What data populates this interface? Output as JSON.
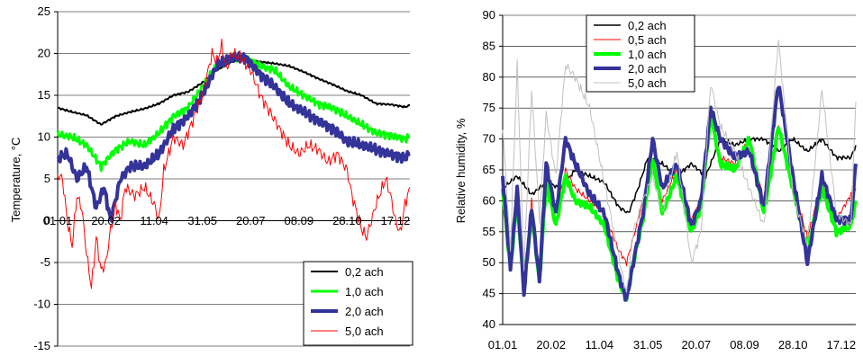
{
  "chart_data": [
    {
      "type": "line",
      "title": "",
      "xlabel": "",
      "ylabel": "Temperature, °C",
      "ylim": [
        -15,
        25
      ],
      "yticks": [
        "-15",
        "-10",
        "-5",
        "0",
        "5",
        "10",
        "15",
        "20",
        "25"
      ],
      "xticks": [
        "01.01",
        "20.02",
        "11.04",
        "31.05",
        "20.07",
        "08.09",
        "28.10",
        "17.12"
      ],
      "x_axis_at_y": 0,
      "grid": "horizontal",
      "legend_position": "bottom-right",
      "series": [
        {
          "name": "0,2 ach",
          "color": "#000000",
          "x": [
            0,
            15,
            30,
            45,
            60,
            75,
            90,
            105,
            120,
            135,
            150,
            165,
            180,
            195,
            210,
            225,
            240,
            255,
            270,
            285,
            300,
            315,
            330,
            345,
            360,
            365
          ],
          "values": [
            13.5,
            13.0,
            12.6,
            11.5,
            12.5,
            13.0,
            13.4,
            14.0,
            15.0,
            15.4,
            16.5,
            18.0,
            19.0,
            19.3,
            19.0,
            18.8,
            18.5,
            17.8,
            17.0,
            16.3,
            15.5,
            15.0,
            14.0,
            13.9,
            13.6,
            13.8
          ]
        },
        {
          "name": "1,0 ach",
          "color": "#00ff00",
          "x": [
            0,
            15,
            30,
            45,
            60,
            75,
            90,
            105,
            120,
            135,
            150,
            165,
            180,
            195,
            210,
            225,
            240,
            255,
            270,
            285,
            300,
            315,
            330,
            345,
            360,
            365
          ],
          "values": [
            10.3,
            10.0,
            9.0,
            6.5,
            8.5,
            9.5,
            9.0,
            10.5,
            12.5,
            13.5,
            16.0,
            18.5,
            19.5,
            19.5,
            18.5,
            18.0,
            16.0,
            15.0,
            14.0,
            13.5,
            12.5,
            11.5,
            10.5,
            10.2,
            9.8,
            10.0
          ]
        },
        {
          "name": "2,0 ach",
          "color": "#333399",
          "x": [
            0,
            10,
            20,
            30,
            40,
            48,
            55,
            65,
            75,
            90,
            105,
            120,
            135,
            150,
            165,
            180,
            195,
            210,
            225,
            240,
            255,
            270,
            285,
            300,
            315,
            330,
            345,
            360,
            365
          ],
          "values": [
            7.5,
            8.0,
            5.0,
            6.5,
            1.5,
            4.0,
            0.0,
            5.0,
            6.5,
            6.5,
            8.0,
            11.0,
            12.5,
            15.0,
            18.5,
            19.5,
            19.5,
            17.5,
            16.0,
            14.0,
            13.0,
            12.0,
            11.0,
            9.5,
            9.0,
            8.5,
            8.0,
            7.5,
            8.0
          ]
        },
        {
          "name": "5,0 ach",
          "color": "#ff0000",
          "x": [
            0,
            5,
            10,
            15,
            20,
            25,
            30,
            35,
            40,
            45,
            50,
            55,
            60,
            65,
            70,
            80,
            90,
            100,
            105,
            110,
            120,
            130,
            140,
            150,
            160,
            165,
            170,
            175,
            180,
            190,
            200,
            210,
            220,
            230,
            240,
            250,
            260,
            270,
            280,
            290,
            300,
            305,
            310,
            315,
            320,
            330,
            340,
            345,
            350,
            355,
            360,
            365
          ],
          "values": [
            5.5,
            5.0,
            0.0,
            -3.0,
            3.0,
            1.5,
            -4.0,
            -8.0,
            -2.0,
            -6.0,
            -5.0,
            -1.0,
            2.0,
            0.0,
            4.0,
            3.0,
            4.0,
            2.0,
            0.0,
            6.0,
            10.0,
            9.0,
            12.0,
            15.0,
            20.0,
            19.0,
            21.0,
            18.0,
            20.0,
            19.5,
            18.0,
            15.0,
            13.0,
            11.0,
            9.0,
            8.0,
            9.0,
            8.5,
            7.0,
            8.0,
            6.0,
            3.0,
            1.0,
            -1.0,
            -2.0,
            2.0,
            5.0,
            3.0,
            0.0,
            -1.5,
            2.0,
            4.0
          ]
        }
      ]
    },
    {
      "type": "line",
      "title": "",
      "xlabel": "",
      "ylabel": "Relative humidity, %",
      "ylim": [
        40,
        90
      ],
      "yticks": [
        "40",
        "45",
        "50",
        "55",
        "60",
        "65",
        "70",
        "75",
        "80",
        "85",
        "90"
      ],
      "xticks": [
        "01.01",
        "20.02",
        "11.04",
        "31.05",
        "20.07",
        "08.09",
        "28.10",
        "17.12"
      ],
      "grid": "horizontal",
      "legend_position": "top-left",
      "series": [
        {
          "name": "0,2 ach",
          "color": "#000000",
          "x": [
            0,
            15,
            30,
            45,
            60,
            75,
            90,
            105,
            120,
            130,
            140,
            150,
            165,
            180,
            195,
            210,
            225,
            240,
            255,
            270,
            285,
            300,
            315,
            330,
            345,
            360,
            365
          ],
          "values": [
            62,
            64,
            61,
            63,
            62,
            65,
            64,
            63,
            59,
            58,
            62,
            67,
            66,
            64,
            66,
            64,
            70,
            69,
            70,
            70,
            68,
            70,
            68,
            70,
            67,
            67,
            69
          ]
        },
        {
          "name": "0,5 ach",
          "color": "#ff0000",
          "x": [
            0,
            8,
            15,
            22,
            30,
            38,
            45,
            55,
            65,
            75,
            90,
            105,
            120,
            128,
            135,
            145,
            155,
            165,
            180,
            195,
            205,
            215,
            225,
            240,
            255,
            270,
            285,
            300,
            315,
            330,
            345,
            360,
            365
          ],
          "values": [
            63,
            50,
            62,
            47,
            60,
            49,
            64,
            58,
            65,
            62,
            60,
            58,
            52,
            50,
            54,
            60,
            65,
            60,
            65,
            57,
            60,
            73,
            67,
            66,
            70,
            60,
            72,
            63,
            54,
            63,
            57,
            61,
            62
          ]
        },
        {
          "name": "1,0 ach",
          "color": "#00ff00",
          "x": [
            0,
            8,
            15,
            22,
            30,
            38,
            45,
            55,
            65,
            75,
            90,
            105,
            120,
            128,
            135,
            145,
            155,
            165,
            180,
            195,
            205,
            215,
            225,
            240,
            255,
            270,
            285,
            300,
            315,
            330,
            345,
            360,
            365
          ],
          "values": [
            62,
            49,
            60,
            46,
            58,
            47,
            63,
            56,
            64,
            60,
            59,
            56,
            47,
            44,
            50,
            57,
            67,
            58,
            64,
            55,
            59,
            74,
            66,
            65,
            70,
            58,
            72,
            62,
            52,
            62,
            55,
            56,
            60
          ]
        },
        {
          "name": "2,0 ach",
          "color": "#333399",
          "x": [
            0,
            8,
            15,
            22,
            30,
            38,
            45,
            55,
            65,
            75,
            90,
            105,
            120,
            128,
            135,
            145,
            155,
            165,
            180,
            195,
            205,
            215,
            225,
            240,
            255,
            270,
            285,
            300,
            315,
            330,
            345,
            360,
            365
          ],
          "values": [
            64,
            49,
            62,
            45,
            59,
            47,
            66,
            58,
            70,
            66,
            61,
            58,
            48,
            44,
            50,
            58,
            70,
            62,
            66,
            56,
            60,
            75,
            70,
            67,
            68,
            59,
            79,
            64,
            50,
            64,
            57,
            57,
            66
          ]
        },
        {
          "name": "5,0 ach",
          "color": "#c0c0c0",
          "x": [
            0,
            8,
            15,
            22,
            30,
            38,
            45,
            55,
            65,
            75,
            90,
            105,
            120,
            128,
            135,
            145,
            155,
            165,
            180,
            195,
            205,
            215,
            225,
            240,
            255,
            270,
            285,
            300,
            315,
            330,
            345,
            360,
            365
          ],
          "values": [
            72,
            52,
            82,
            49,
            78,
            57,
            74,
            64,
            82,
            80,
            75,
            63,
            51,
            45,
            55,
            60,
            64,
            58,
            68,
            50,
            55,
            79,
            72,
            68,
            62,
            56,
            86,
            61,
            53,
            78,
            58,
            56,
            76
          ]
        }
      ]
    }
  ]
}
